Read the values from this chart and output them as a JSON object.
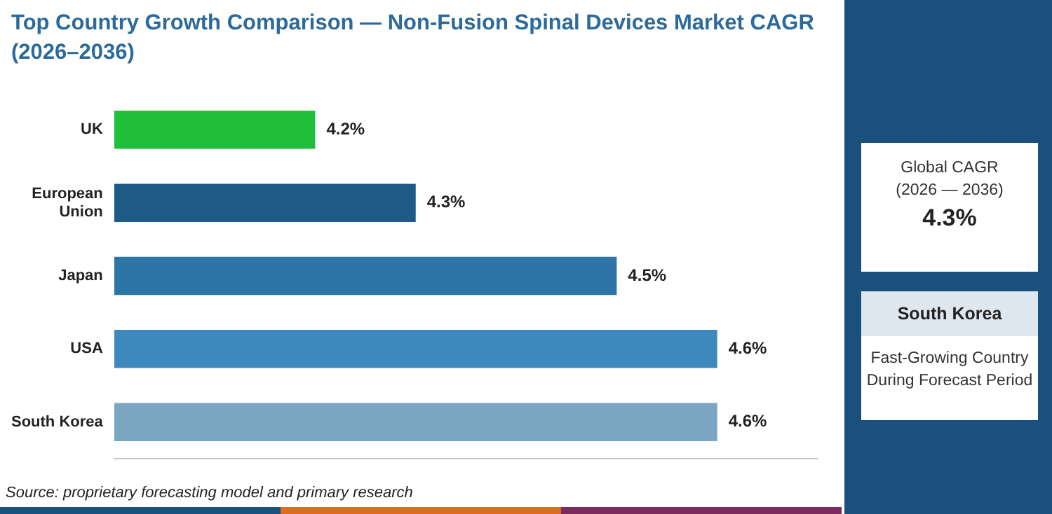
{
  "chart_data": {
    "type": "bar",
    "orientation": "horizontal",
    "title": "Top Country Growth Comparison — Non-Fusion Spinal Devices Market CAGR (2026–2036)",
    "categories": [
      "UK",
      "European\nUnion",
      "Japan",
      "USA",
      "South Korea"
    ],
    "values": [
      4.2,
      4.3,
      4.5,
      4.6,
      4.6
    ],
    "colors": [
      "#1fbf3a",
      "#1e5a86",
      "#2c75a6",
      "#3d88bc",
      "#7aa6c2"
    ],
    "value_labels": [
      "4.2%",
      "4.3%",
      "4.5%",
      "4.6%",
      "4.6%"
    ],
    "xlim": [
      4.0,
      4.7
    ],
    "tick_labels": "y",
    "grid": false,
    "legend": false,
    "annotations": [
      "Source: proprietary forecasting model and primary research",
      "Global CAGR",
      "(2026 — 2036)",
      "4.3%",
      "South Korea",
      "Fast-Growing Country",
      "During Forecast Period"
    ]
  }
}
